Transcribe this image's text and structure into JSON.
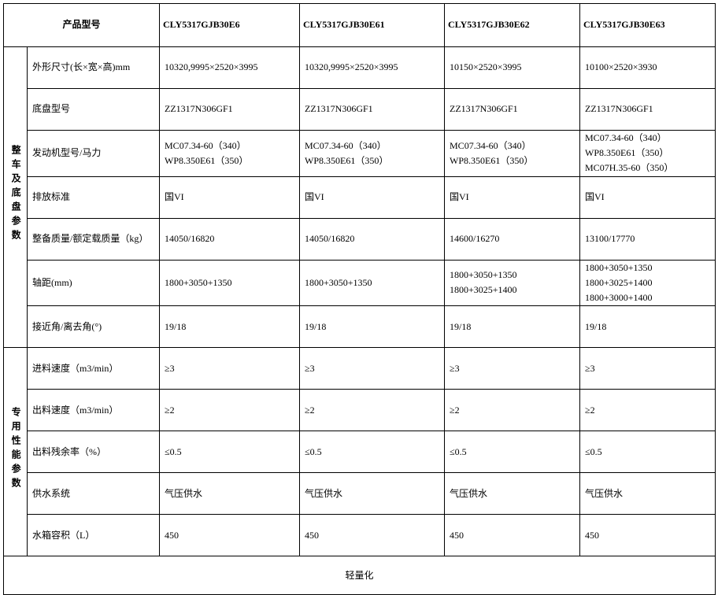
{
  "header": {
    "rowLabelHeader": "产品型号",
    "products": [
      "CLY5317GJB30E6",
      "CLY5317GJB30E61",
      "CLY5317GJB30E62",
      "CLY5317GJB30E63"
    ]
  },
  "groups": [
    {
      "name": "整车及底盘参数",
      "rows": [
        {
          "label": "外形尺寸(长×宽×高)mm",
          "cells": [
            "10320,9995×2520×3995",
            "10320,9995×2520×3995",
            "10150×2520×3995",
            "10100×2520×3930"
          ]
        },
        {
          "label": "底盘型号",
          "cells": [
            "ZZ1317N306GF1",
            "ZZ1317N306GF1",
            "ZZ1317N306GF1",
            "ZZ1317N306GF1"
          ]
        },
        {
          "label": "发动机型号/马力",
          "cells": [
            "MC07.34-60（340）\nWP8.350E61（350）",
            "MC07.34-60（340）\nWP8.350E61（350）",
            "MC07.34-60（340）\nWP8.350E61（350）",
            "MC07.34-60（340）\nWP8.350E61（350）\nMC07H.35-60（350）"
          ]
        },
        {
          "label": "排放标准",
          "cells": [
            "国VI",
            "国VI",
            "国VI",
            "国VI"
          ]
        },
        {
          "label": "整备质量/额定载质量（kg）",
          "cells": [
            "14050/16820",
            "14050/16820",
            "14600/16270",
            "13100/17770"
          ]
        },
        {
          "label": "轴距(mm)",
          "cells": [
            "1800+3050+1350",
            "1800+3050+1350",
            "1800+3050+1350\n1800+3025+1400",
            "1800+3050+1350\n1800+3025+1400\n1800+3000+1400"
          ]
        },
        {
          "label": "接近角/离去角(°)",
          "cells": [
            "19/18",
            "19/18",
            "19/18",
            "19/18"
          ]
        }
      ]
    },
    {
      "name": "专用性能参数",
      "rows": [
        {
          "label": "进料速度（m3/min）",
          "cells": [
            "≥3",
            "≥3",
            "≥3",
            "≥3"
          ]
        },
        {
          "label": "出料速度（m3/min）",
          "cells": [
            "≥2",
            "≥2",
            "≥2",
            "≥2"
          ]
        },
        {
          "label": "出料残余率（%）",
          "cells": [
            "≤0.5",
            "≤0.5",
            "≤0.5",
            "≤0.5"
          ]
        },
        {
          "label": "供水系统",
          "cells": [
            "气压供水",
            "气压供水",
            "气压供水",
            "气压供水"
          ]
        },
        {
          "label": "水箱容积（L）",
          "cells": [
            "450",
            "450",
            "450",
            "450"
          ]
        }
      ]
    }
  ],
  "footer": "轻量化"
}
